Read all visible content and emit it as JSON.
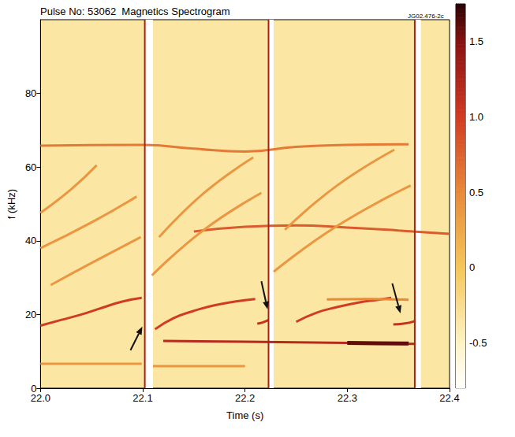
{
  "chart_data": {
    "type": "spectrogram",
    "title": "Pulse No: 53062  Magnetics Spectrogram",
    "subtitle": "JG02.476-2c",
    "x_label": "Time (s)",
    "y_label": "f (kHz)",
    "xlim": [
      22.0,
      22.4
    ],
    "xticks": [
      {
        "value": 22.0,
        "label": "22.0"
      },
      22.1,
      22.2,
      22.3,
      22.4
    ],
    "ylim": [
      0,
      100
    ],
    "yticks": [
      0,
      20,
      40,
      60,
      80
    ],
    "grid": false,
    "colorbar": {
      "lim": [
        -0.8,
        1.75
      ],
      "ticks": [
        -0.5,
        0,
        0.5,
        {
          "value": 1.0,
          "label": "1.0"
        },
        1.5
      ]
    },
    "background": -0.35,
    "series": [
      {
        "x": [
          22.0,
          22.02,
          22.04,
          22.06,
          22.08,
          22.099
        ],
        "values": [
          17,
          18.5,
          20,
          21.8,
          23.5,
          24.5
        ],
        "level": 1.0
      },
      {
        "x": [
          22.112,
          22.13,
          22.15,
          22.17,
          22.19,
          22.21
        ],
        "values": [
          16,
          19,
          21,
          22.5,
          23.5,
          24.2
        ],
        "level": 1.0
      },
      {
        "x": [
          22.212,
          22.217,
          22.223
        ],
        "values": [
          17.5,
          17.8,
          18.5
        ],
        "level": 1.1
      },
      {
        "x": [
          22.25,
          22.27,
          22.29,
          22.31,
          22.33,
          22.343
        ],
        "values": [
          18,
          20.5,
          22,
          23.2,
          24,
          24.5
        ],
        "level": 1.0
      },
      {
        "x": [
          22.345,
          22.355,
          22.366
        ],
        "values": [
          17.3,
          17.5,
          18.2
        ],
        "level": 1.1
      },
      {
        "x": [
          22.0,
          22.1,
          22.15,
          22.2,
          22.25,
          22.3,
          22.36
        ],
        "values": [
          65.8,
          66,
          65,
          64.2,
          65.5,
          66,
          66.2
        ],
        "level": 0.6
      },
      {
        "x": [
          22.15,
          22.2,
          22.25,
          22.3,
          22.35,
          22.4
        ],
        "values": [
          42.5,
          43.8,
          44.2,
          43.6,
          42.8,
          41.9
        ],
        "level": 0.8
      },
      {
        "x": [
          22.12,
          22.2,
          22.3,
          22.366
        ],
        "values": [
          12.8,
          12.6,
          12.3,
          12.0
        ],
        "level": 1.2
      },
      {
        "x": [
          22.3,
          22.33,
          22.36
        ],
        "values": [
          12.3,
          12.2,
          12.1
        ],
        "level": 1.6
      },
      {
        "x": [
          22.28,
          22.32,
          22.36
        ],
        "values": [
          24.1,
          24.2,
          24.0
        ],
        "level": 0.5
      },
      {
        "x": [
          22.0,
          22.05,
          22.099
        ],
        "values": [
          6.6,
          6.6,
          6.6
        ],
        "level": 0.4
      },
      {
        "x": [
          22.11,
          22.16,
          22.2
        ],
        "values": [
          6,
          6,
          6
        ],
        "level": 0.4
      },
      {
        "x": [
          22.0,
          22.05,
          22.094
        ],
        "values": [
          38,
          45,
          52
        ],
        "level": 0.4
      },
      {
        "x": [
          22.0,
          22.03,
          22.055
        ],
        "values": [
          47.6,
          54,
          60.5
        ],
        "level": 0.4
      },
      {
        "x": [
          22.01,
          22.05,
          22.098
        ],
        "values": [
          28,
          34,
          41
        ],
        "level": 0.4
      },
      {
        "x": [
          22.109,
          22.16,
          22.216
        ],
        "values": [
          30.6,
          43,
          53
        ],
        "level": 0.4
      },
      {
        "x": [
          22.116,
          22.16,
          22.208
        ],
        "values": [
          41,
          53,
          62.6
        ],
        "level": 0.4
      },
      {
        "x": [
          22.228,
          22.29,
          22.362
        ],
        "values": [
          31.6,
          44,
          55
        ],
        "level": 0.4
      },
      {
        "x": [
          22.239,
          22.29,
          22.346
        ],
        "values": [
          43,
          55,
          64.7
        ],
        "level": 0.4
      }
    ],
    "crashes": {
      "x": [
        22.102,
        22.223,
        22.366
      ],
      "level": 1.3
    },
    "quiet_intervals": {
      "x": [
        [
          22.102,
          22.11
        ],
        [
          22.223,
          22.228
        ],
        [
          22.366,
          22.372
        ]
      ],
      "level": -0.8
    },
    "arrows": [
      {
        "x": 22.0996,
        "y": 16.7,
        "from_x": 22.088,
        "from_y": 10.3
      },
      {
        "x": 22.222,
        "y": 21.4,
        "from_x": 22.216,
        "from_y": 29
      },
      {
        "x": 22.352,
        "y": 20.3,
        "from_x": 22.344,
        "from_y": 28.4
      }
    ]
  }
}
